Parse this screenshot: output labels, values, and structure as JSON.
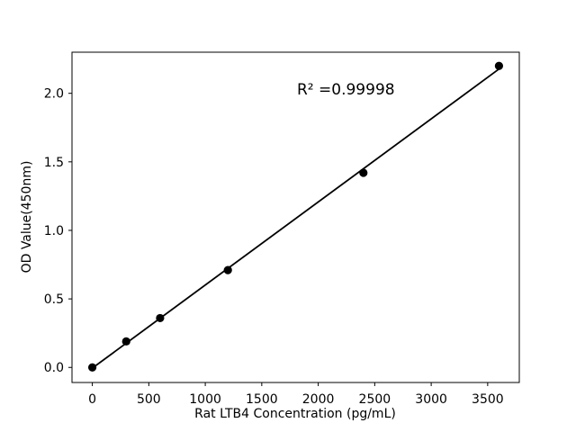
{
  "chart_data": {
    "type": "scatter",
    "title": "",
    "xlabel": "Rat LTB4 Concentration (pg/mL)",
    "ylabel": "OD Value(450nm)",
    "annotation": "R² =0.99998",
    "r_squared": 0.99998,
    "x": [
      0,
      300,
      600,
      1200,
      2400,
      3600
    ],
    "y": [
      0.0,
      0.19,
      0.36,
      0.71,
      1.42,
      2.2
    ],
    "fit_line": true,
    "xlim": [
      -180,
      3780
    ],
    "ylim": [
      -0.11,
      2.3
    ],
    "xticks": [
      0,
      500,
      1000,
      1500,
      2000,
      2500,
      3000,
      3500
    ],
    "xtick_labels": [
      "0",
      "500",
      "1000",
      "1500",
      "2000",
      "2500",
      "3000",
      "3500"
    ],
    "yticks": [
      0.0,
      0.5,
      1.0,
      1.5,
      2.0
    ],
    "ytick_labels": [
      "0.0",
      "0.5",
      "1.0",
      "1.5",
      "2.0"
    ],
    "grid": false,
    "legend": null,
    "line_color": "#000000",
    "marker_color": "#000000",
    "axis_color": "#000000",
    "background_color": "#ffffff"
  }
}
